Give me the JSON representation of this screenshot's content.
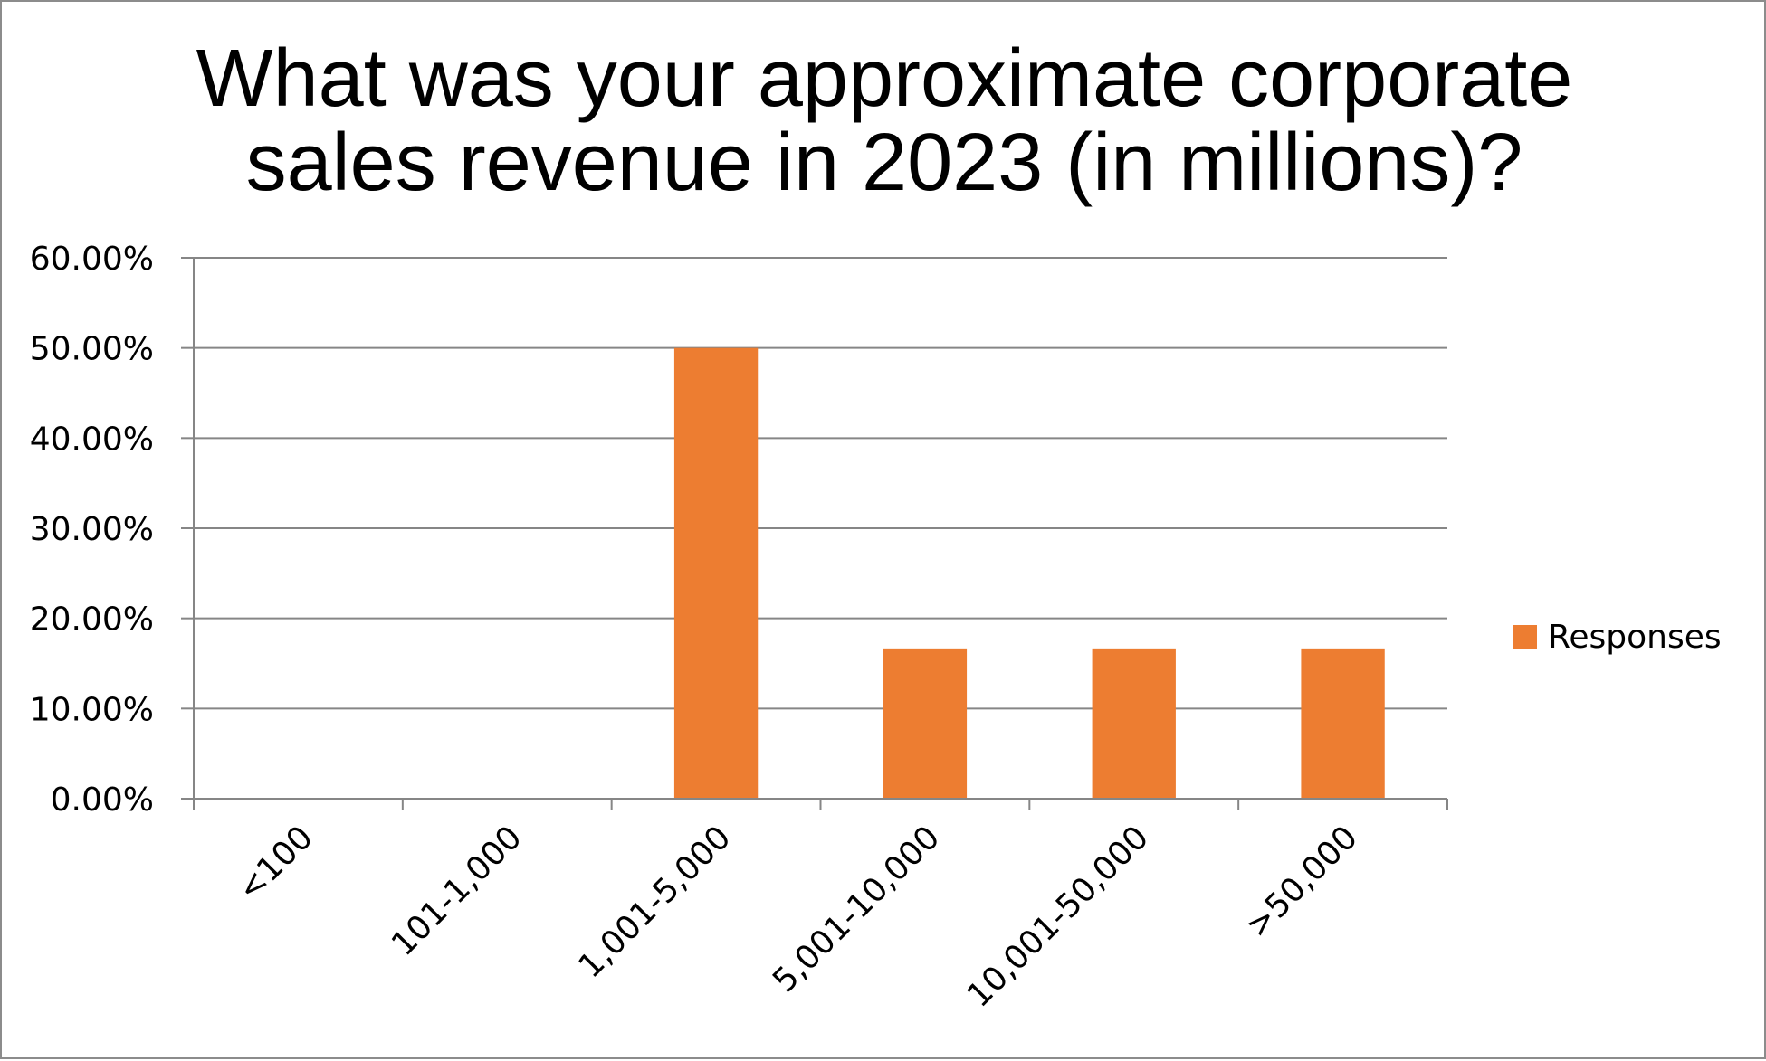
{
  "chart_data": {
    "type": "bar",
    "title_lines": [
      "What was your approximate corporate",
      "sales revenue in 2023 (in millions)?"
    ],
    "categories": [
      "<100",
      "101-1,000",
      "1,001-5,000",
      "5,001-10,000",
      "10,001-50,000",
      ">50,000"
    ],
    "series": [
      {
        "name": "Responses",
        "values": [
          0,
          0,
          50.0,
          16.67,
          16.67,
          16.67
        ],
        "color": "#ED7D31"
      }
    ],
    "ylim": [
      0,
      60
    ],
    "yticks": [
      0,
      10,
      20,
      30,
      40,
      50,
      60
    ],
    "ytick_labels": [
      "0.00%",
      "10.00%",
      "20.00%",
      "30.00%",
      "40.00%",
      "50.00%",
      "60.00%"
    ],
    "xlabel": "",
    "ylabel": "",
    "grid": true,
    "gridline_color": "#868686",
    "legend_position": "right"
  }
}
